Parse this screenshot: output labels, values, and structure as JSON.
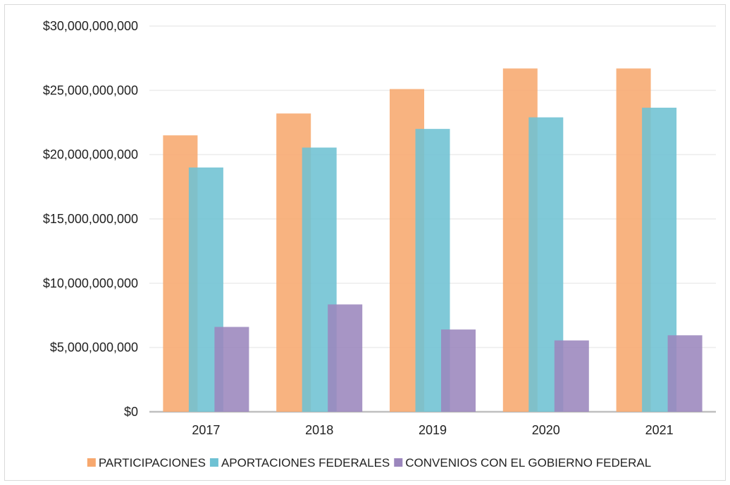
{
  "chart_data": {
    "type": "bar",
    "title": "",
    "xlabel": "",
    "ylabel": "",
    "categories": [
      "2017",
      "2018",
      "2019",
      "2020",
      "2021"
    ],
    "ylim": [
      0,
      30000000000
    ],
    "yticks": [
      0,
      5000000000,
      10000000000,
      15000000000,
      20000000000,
      25000000000,
      30000000000
    ],
    "ytick_labels": [
      "$0",
      "$5,000,000,000",
      "$10,000,000,000",
      "$15,000,000,000",
      "$20,000,000,000",
      "$25,000,000,000",
      "$30,000,000,000"
    ],
    "grid": true,
    "legend_position": "bottom",
    "overlapping_bars": true,
    "series": [
      {
        "name": "PARTICIPACIONES",
        "color": "#F7A86E",
        "values": [
          21500000000,
          23200000000,
          25100000000,
          26700000000,
          26700000000
        ]
      },
      {
        "name": "APORTACIONES FEDERALES",
        "color": "#6EC1D3",
        "values": [
          19000000000,
          20550000000,
          22000000000,
          22900000000,
          23650000000
        ]
      },
      {
        "name": "CONVENIOS CON EL GOBIERNO FEDERAL",
        "color": "#9B86BD",
        "values": [
          6600000000,
          8350000000,
          6400000000,
          5550000000,
          5950000000
        ]
      }
    ]
  }
}
